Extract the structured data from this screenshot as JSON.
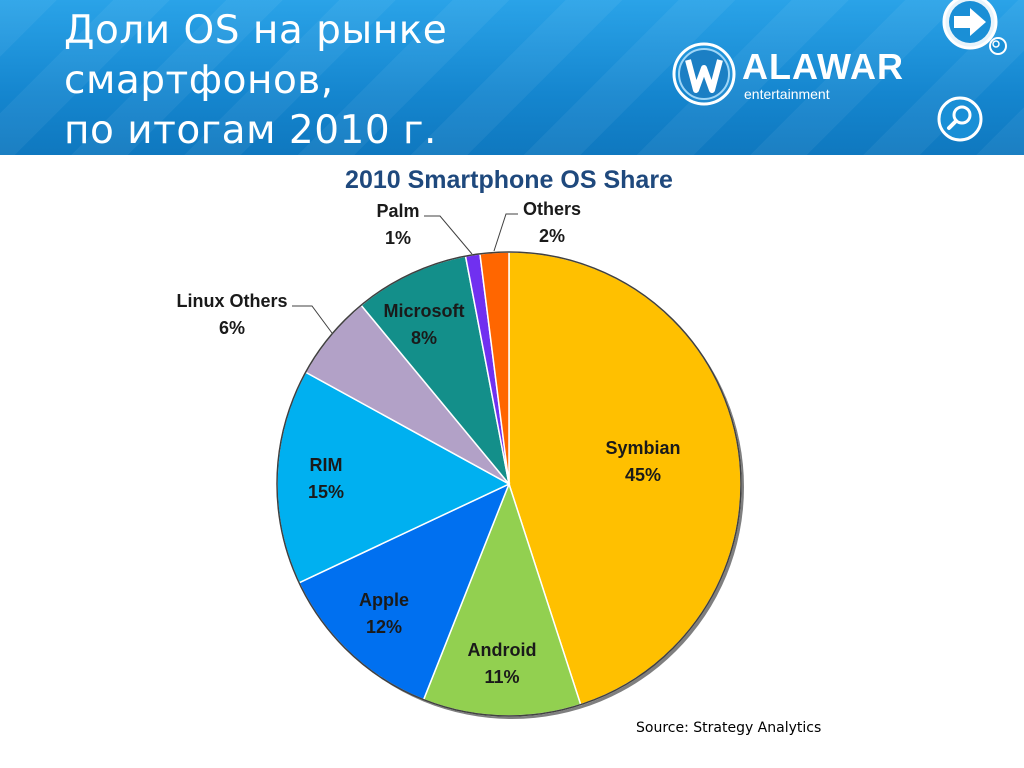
{
  "slide": {
    "title_lines": [
      "Доли OS на рынке",
      "смартфонов,",
      "по итогам 2010 г."
    ]
  },
  "logo": {
    "word": "ALAWAR",
    "sub": "entertainment"
  },
  "source": "Source: Strategy Analytics",
  "colors": {
    "header": "#1a8fd6",
    "title": "#1f497d"
  },
  "chart_data": {
    "type": "pie",
    "title": "2010 Smartphone OS Share",
    "slices": [
      {
        "label": "Symbian",
        "value": 45,
        "display": "45%",
        "color": "#ffc000"
      },
      {
        "label": "Android",
        "value": 11,
        "display": "11%",
        "color": "#92d050"
      },
      {
        "label": "Apple",
        "value": 12,
        "display": "12%",
        "color": "#0070f0"
      },
      {
        "label": "RIM",
        "value": 15,
        "display": "15%",
        "color": "#00b0f0"
      },
      {
        "label": "Linux Others",
        "value": 6,
        "display": "6%",
        "color": "#b2a1c7"
      },
      {
        "label": "Microsoft",
        "value": 8,
        "display": "8%",
        "color": "#138f8a"
      },
      {
        "label": "Palm",
        "value": 1,
        "display": "1%",
        "color": "#7030f0"
      },
      {
        "label": "Others",
        "value": 2,
        "display": "2%",
        "color": "#ff6600"
      }
    ],
    "start": "top",
    "direction": "clockwise",
    "legend": "none"
  }
}
